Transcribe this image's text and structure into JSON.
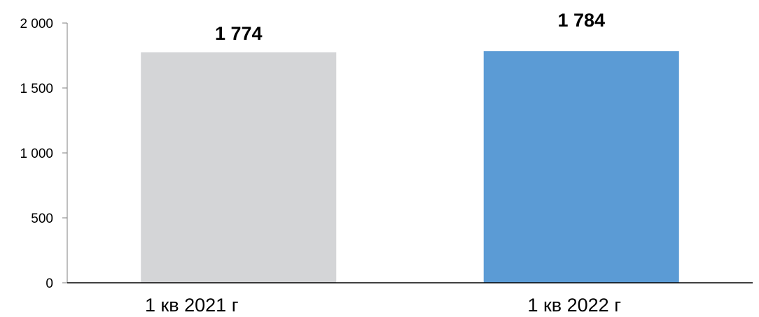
{
  "chart_data": {
    "type": "bar",
    "categories": [
      "1 кв 2021 г",
      "1 кв 2022 г"
    ],
    "values": [
      1774,
      1784
    ],
    "data_labels": [
      "1 774",
      "1 784"
    ],
    "colors": [
      "#d4d5d7",
      "#5b9bd5"
    ],
    "ylim": [
      0,
      2000
    ],
    "yticks": [
      0,
      500,
      1000,
      1500,
      2000
    ],
    "ytick_labels": [
      "0",
      "500",
      "1 000",
      "1 500",
      "2 000"
    ],
    "grid": false,
    "legend": "none"
  }
}
